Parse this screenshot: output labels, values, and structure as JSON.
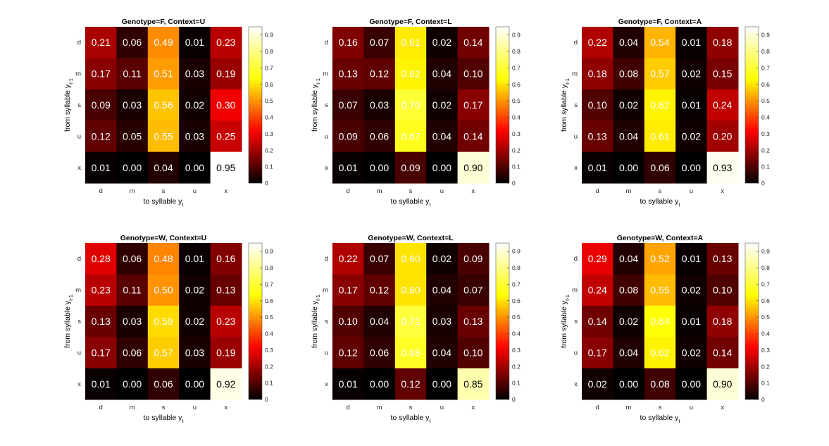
{
  "figure": {
    "ylabel_main": "from syllable y",
    "ylabel_sub": "t-1",
    "xlabel_main": "to syllable y",
    "xlabel_sub": "t"
  },
  "colormap": {
    "name": "hot",
    "stops": [
      "#000000",
      "#ff0000",
      "#ffff00",
      "#ffffff"
    ]
  },
  "colorbar": {
    "range": [
      0,
      0.95
    ],
    "ticks": [
      "0",
      "0.1",
      "0.2",
      "0.3",
      "0.4",
      "0.5",
      "0.6",
      "0.7",
      "0.8",
      "0.9"
    ]
  },
  "chart_data": [
    {
      "type": "heatmap",
      "title": "Genotype=F, Context=U",
      "x_categories": [
        "d",
        "m",
        "s",
        "u",
        "x"
      ],
      "y_categories": [
        "d",
        "m",
        "s",
        "u",
        "x"
      ],
      "values": [
        [
          0.21,
          0.06,
          0.49,
          0.01,
          0.23
        ],
        [
          0.17,
          0.11,
          0.51,
          0.03,
          0.19
        ],
        [
          0.09,
          0.03,
          0.56,
          0.02,
          0.3
        ],
        [
          0.12,
          0.05,
          0.55,
          0.03,
          0.25
        ],
        [
          0.01,
          0.0,
          0.04,
          0.0,
          0.95
        ]
      ],
      "labels": [
        [
          "0.21",
          "0.06",
          "0.49",
          "0.01",
          "0.23"
        ],
        [
          "0.17",
          "0.11",
          "0.51",
          "0.03",
          "0.19"
        ],
        [
          "0.09",
          "0.03",
          "0.56",
          "0.02",
          "0.30"
        ],
        [
          "0.12",
          "0.05",
          "0.55",
          "0.03",
          "0.25"
        ],
        [
          "0.01",
          "0.00",
          "0.04",
          "0.00",
          "0.95"
        ]
      ]
    },
    {
      "type": "heatmap",
      "title": "Genotype=F, Context=L",
      "x_categories": [
        "d",
        "m",
        "s",
        "u",
        "x"
      ],
      "y_categories": [
        "d",
        "m",
        "s",
        "u",
        "x"
      ],
      "values": [
        [
          0.16,
          0.07,
          0.61,
          0.02,
          0.14
        ],
        [
          0.13,
          0.12,
          0.62,
          0.04,
          0.1
        ],
        [
          0.07,
          0.03,
          0.7,
          0.02,
          0.17
        ],
        [
          0.09,
          0.06,
          0.67,
          0.04,
          0.14
        ],
        [
          0.01,
          0.0,
          0.09,
          0.0,
          0.9
        ]
      ],
      "labels": [
        [
          "0.16",
          "0.07",
          "0.61",
          "0.02",
          "0.14"
        ],
        [
          "0.13",
          "0.12",
          "0.62",
          "0.04",
          "0.10"
        ],
        [
          "0.07",
          "0.03",
          "0.70",
          "0.02",
          "0.17"
        ],
        [
          "0.09",
          "0.06",
          "0.67",
          "0.04",
          "0.14"
        ],
        [
          "0.01",
          "0.00",
          "0.09",
          "0.00",
          "0.90"
        ]
      ]
    },
    {
      "type": "heatmap",
      "title": "Genotype=F, Context=A",
      "x_categories": [
        "d",
        "m",
        "s",
        "u",
        "x"
      ],
      "y_categories": [
        "d",
        "m",
        "s",
        "u",
        "x"
      ],
      "values": [
        [
          0.22,
          0.04,
          0.54,
          0.01,
          0.18
        ],
        [
          0.18,
          0.08,
          0.57,
          0.02,
          0.15
        ],
        [
          0.1,
          0.02,
          0.62,
          0.01,
          0.24
        ],
        [
          0.13,
          0.04,
          0.61,
          0.02,
          0.2
        ],
        [
          0.01,
          0.0,
          0.06,
          0.0,
          0.93
        ]
      ],
      "labels": [
        [
          "0.22",
          "0.04",
          "0.54",
          "0.01",
          "0.18"
        ],
        [
          "0.18",
          "0.08",
          "0.57",
          "0.02",
          "0.15"
        ],
        [
          "0.10",
          "0.02",
          "0.62",
          "0.01",
          "0.24"
        ],
        [
          "0.13",
          "0.04",
          "0.61",
          "0.02",
          "0.20"
        ],
        [
          "0.01",
          "0.00",
          "0.06",
          "0.00",
          "0.93"
        ]
      ]
    },
    {
      "type": "heatmap",
      "title": "Genotype=W, Context=U",
      "x_categories": [
        "d",
        "m",
        "s",
        "u",
        "x"
      ],
      "y_categories": [
        "d",
        "m",
        "s",
        "u",
        "x"
      ],
      "values": [
        [
          0.28,
          0.06,
          0.48,
          0.01,
          0.16
        ],
        [
          0.23,
          0.11,
          0.5,
          0.02,
          0.13
        ],
        [
          0.13,
          0.03,
          0.59,
          0.02,
          0.23
        ],
        [
          0.17,
          0.06,
          0.57,
          0.03,
          0.19
        ],
        [
          0.01,
          0.0,
          0.06,
          0.0,
          0.92
        ]
      ],
      "labels": [
        [
          "0.28",
          "0.06",
          "0.48",
          "0.01",
          "0.16"
        ],
        [
          "0.23",
          "0.11",
          "0.50",
          "0.02",
          "0.13"
        ],
        [
          "0.13",
          "0.03",
          "0.59",
          "0.02",
          "0.23"
        ],
        [
          "0.17",
          "0.06",
          "0.57",
          "0.03",
          "0.19"
        ],
        [
          "0.01",
          "0.00",
          "0.06",
          "0.00",
          "0.92"
        ]
      ]
    },
    {
      "type": "heatmap",
      "title": "Genotype=W, Context=L",
      "x_categories": [
        "d",
        "m",
        "s",
        "u",
        "x"
      ],
      "y_categories": [
        "d",
        "m",
        "s",
        "u",
        "x"
      ],
      "values": [
        [
          0.22,
          0.07,
          0.6,
          0.02,
          0.09
        ],
        [
          0.17,
          0.12,
          0.6,
          0.04,
          0.07
        ],
        [
          0.1,
          0.04,
          0.71,
          0.03,
          0.13
        ],
        [
          0.12,
          0.06,
          0.68,
          0.04,
          0.1
        ],
        [
          0.01,
          0.0,
          0.12,
          0.0,
          0.85
        ]
      ],
      "labels": [
        [
          "0.22",
          "0.07",
          "0.60",
          "0.02",
          "0.09"
        ],
        [
          "0.17",
          "0.12",
          "0.60",
          "0.04",
          "0.07"
        ],
        [
          "0.10",
          "0.04",
          "0.71",
          "0.03",
          "0.13"
        ],
        [
          "0.12",
          "0.06",
          "0.68",
          "0.04",
          "0.10"
        ],
        [
          "0.01",
          "0.00",
          "0.12",
          "0.00",
          "0.85"
        ]
      ]
    },
    {
      "type": "heatmap",
      "title": "Genotype=W, Context=A",
      "x_categories": [
        "d",
        "m",
        "s",
        "u",
        "x"
      ],
      "y_categories": [
        "d",
        "m",
        "s",
        "u",
        "x"
      ],
      "values": [
        [
          0.29,
          0.04,
          0.52,
          0.01,
          0.13
        ],
        [
          0.24,
          0.08,
          0.55,
          0.02,
          0.1
        ],
        [
          0.14,
          0.02,
          0.64,
          0.01,
          0.18
        ],
        [
          0.17,
          0.04,
          0.62,
          0.02,
          0.14
        ],
        [
          0.02,
          0.0,
          0.08,
          0.0,
          0.9
        ]
      ],
      "labels": [
        [
          "0.29",
          "0.04",
          "0.52",
          "0.01",
          "0.13"
        ],
        [
          "0.24",
          "0.08",
          "0.55",
          "0.02",
          "0.10"
        ],
        [
          "0.14",
          "0.02",
          "0.64",
          "0.01",
          "0.18"
        ],
        [
          "0.17",
          "0.04",
          "0.62",
          "0.02",
          "0.14"
        ],
        [
          "0.02",
          "0.00",
          "0.08",
          "0.00",
          "0.90"
        ]
      ]
    }
  ]
}
